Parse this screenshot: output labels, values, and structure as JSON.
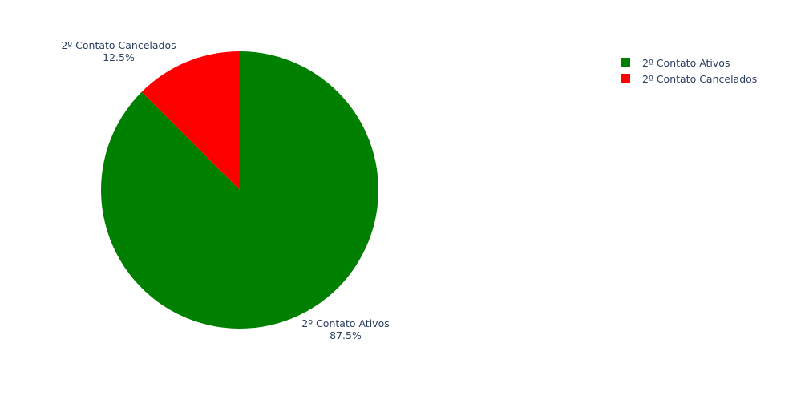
{
  "chart_data": {
    "type": "pie",
    "slices": [
      {
        "label": "2º Contato Ativos",
        "value": 87.5,
        "percent_text": "87.5%",
        "color": "#008000"
      },
      {
        "label": "2º Contato Cancelados",
        "value": 12.5,
        "percent_text": "12.5%",
        "color": "#ff0000"
      }
    ],
    "legend": {
      "position": "top-right",
      "entries": [
        {
          "label": "2º Contato Ativos",
          "color": "#008000"
        },
        {
          "label": "2º Contato Cancelados",
          "color": "#ff0000"
        }
      ]
    },
    "start_angle": "12 o'clock",
    "direction": "clockwise"
  }
}
